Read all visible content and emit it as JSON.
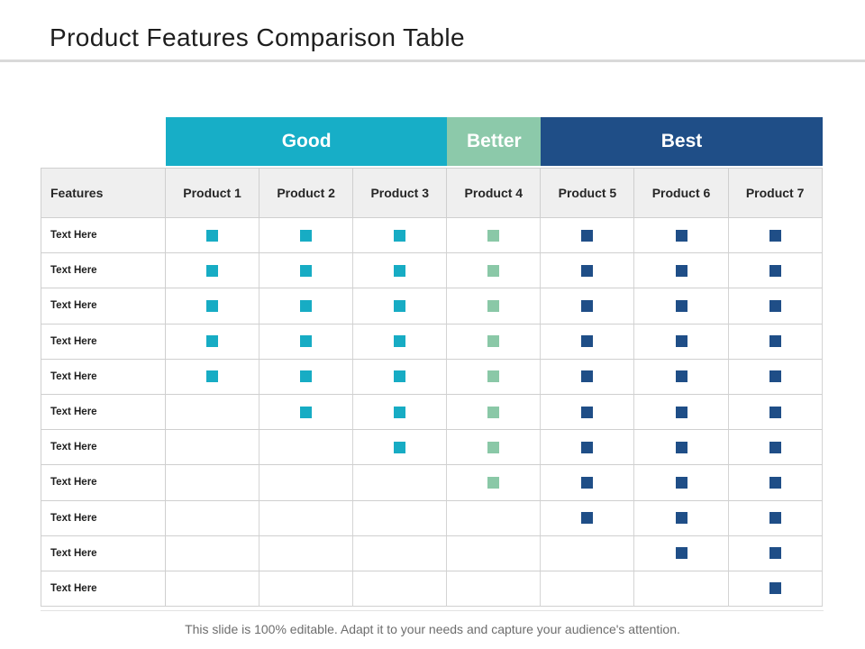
{
  "title": "Product Features Comparison Table",
  "footer": "This slide is 100% editable. Adapt it to your needs and capture your audience's attention.",
  "table": {
    "group_headers": [
      {
        "label": "Good",
        "span": 3,
        "color": "#17AEC7"
      },
      {
        "label": "Better",
        "span": 1,
        "color": "#8CC9AA"
      },
      {
        "label": "Best",
        "span": 3,
        "color": "#1F4E87"
      }
    ],
    "feature_column_header": "Features",
    "product_headers": [
      "Product 1",
      "Product 2",
      "Product 3",
      "Product 4",
      "Product 5",
      "Product 6",
      "Product 7"
    ],
    "mark_colors": [
      "#17ACC4",
      "#17ACC4",
      "#17ACC4",
      "#8AC8A7",
      "#1F4E87",
      "#1F4E87",
      "#1F4E87"
    ],
    "rows": [
      {
        "label": "Text Here",
        "marks": [
          1,
          1,
          1,
          1,
          1,
          1,
          1
        ]
      },
      {
        "label": "Text Here",
        "marks": [
          1,
          1,
          1,
          1,
          1,
          1,
          1
        ]
      },
      {
        "label": "Text Here",
        "marks": [
          1,
          1,
          1,
          1,
          1,
          1,
          1
        ]
      },
      {
        "label": "Text Here",
        "marks": [
          1,
          1,
          1,
          1,
          1,
          1,
          1
        ]
      },
      {
        "label": "Text Here",
        "marks": [
          1,
          1,
          1,
          1,
          1,
          1,
          1
        ]
      },
      {
        "label": "Text Here",
        "marks": [
          0,
          1,
          1,
          1,
          1,
          1,
          1
        ]
      },
      {
        "label": "Text Here",
        "marks": [
          0,
          0,
          1,
          1,
          1,
          1,
          1
        ]
      },
      {
        "label": "Text Here",
        "marks": [
          0,
          0,
          0,
          1,
          1,
          1,
          1
        ]
      },
      {
        "label": "Text Here",
        "marks": [
          0,
          0,
          0,
          0,
          1,
          1,
          1
        ]
      },
      {
        "label": "Text Here",
        "marks": [
          0,
          0,
          0,
          0,
          0,
          1,
          1
        ]
      },
      {
        "label": "Text Here",
        "marks": [
          0,
          0,
          0,
          0,
          0,
          0,
          1
        ]
      }
    ]
  }
}
